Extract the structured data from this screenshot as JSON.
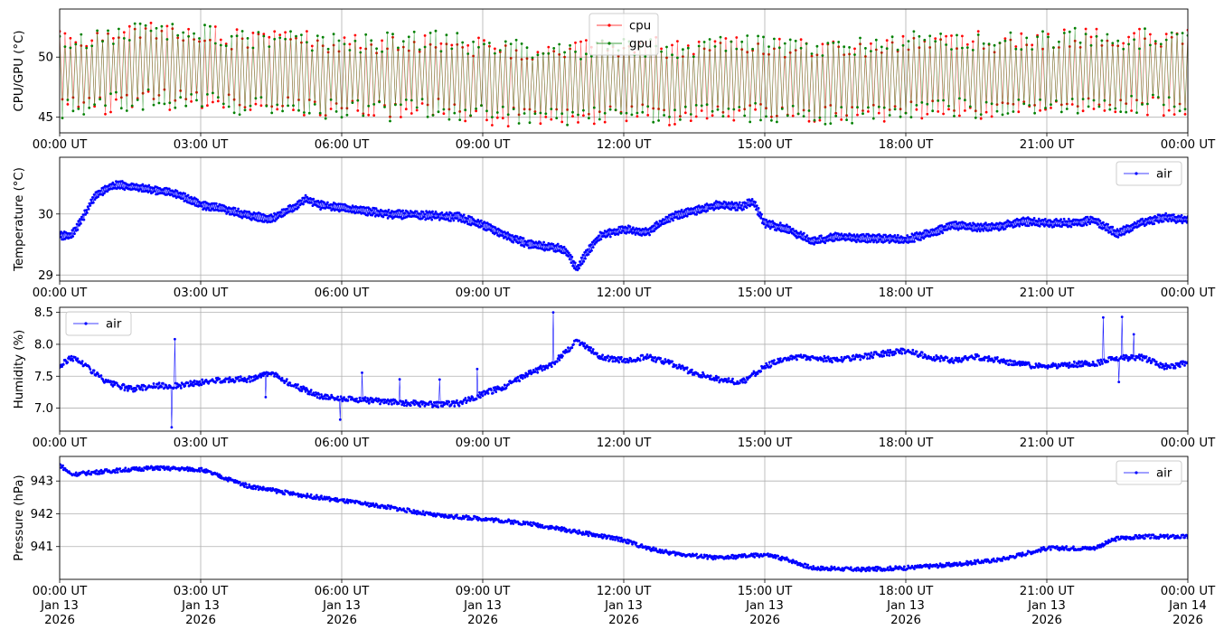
{
  "chart_data": [
    {
      "type": "line",
      "ylabel": "CPU/GPU (°C)",
      "xlim": [
        "2026-01-13T00:00Z",
        "2026-01-14T00:00Z"
      ],
      "ylim": [
        43.7,
        54.0
      ],
      "yticks": [
        45,
        50
      ],
      "grid": true,
      "legend": "upper center",
      "x_tick_labels": [
        "00:00 UT",
        "03:00 UT",
        "06:00 UT",
        "09:00 UT",
        "12:00 UT",
        "15:00 UT",
        "18:00 UT",
        "21:00 UT",
        "00:00 UT"
      ],
      "series": [
        {
          "name": "cpu",
          "color": "#ff0000",
          "x": [
            "00:00",
            "01:00",
            "02:00",
            "03:00",
            "04:00",
            "05:00",
            "06:00",
            "07:00",
            "08:00",
            "09:00",
            "10:00",
            "11:00",
            "12:00",
            "13:00",
            "14:00",
            "15:00",
            "16:00",
            "17:00",
            "18:00",
            "19:00",
            "20:00",
            "21:00",
            "22:00",
            "23:00",
            "24:00"
          ],
          "values": [
            48.6,
            48.9,
            49.4,
            49.1,
            48.6,
            48.7,
            48.4,
            48.4,
            48.6,
            48.0,
            47.8,
            47.7,
            48.1,
            47.9,
            48.3,
            48.2,
            48.0,
            48.0,
            48.5,
            48.6,
            48.4,
            48.6,
            48.8,
            48.7,
            48.8
          ],
          "band": 3.6
        },
        {
          "name": "gpu",
          "color": "#008000",
          "x": [
            "00:00",
            "01:00",
            "02:00",
            "03:00",
            "04:00",
            "05:00",
            "06:00",
            "07:00",
            "08:00",
            "09:00",
            "10:00",
            "11:00",
            "12:00",
            "13:00",
            "14:00",
            "15:00",
            "16:00",
            "17:00",
            "18:00",
            "19:00",
            "20:00",
            "21:00",
            "22:00",
            "23:00",
            "24:00"
          ],
          "values": [
            48.6,
            48.9,
            49.4,
            49.1,
            48.6,
            48.7,
            48.4,
            48.4,
            48.6,
            48.0,
            47.8,
            47.7,
            48.1,
            47.9,
            48.3,
            48.2,
            48.0,
            48.0,
            48.5,
            48.6,
            48.4,
            48.6,
            48.8,
            48.7,
            48.8
          ],
          "band": 3.6
        }
      ]
    },
    {
      "type": "line",
      "ylabel": "Temperature (°C)",
      "xlim": [
        "2026-01-13T00:00Z",
        "2026-01-14T00:00Z"
      ],
      "ylim": [
        28.9,
        30.93
      ],
      "yticks": [
        29,
        30
      ],
      "grid": true,
      "legend": "upper right",
      "x_tick_labels": [
        "00:00 UT",
        "03:00 UT",
        "06:00 UT",
        "09:00 UT",
        "12:00 UT",
        "15:00 UT",
        "18:00 UT",
        "21:00 UT",
        "00:00 UT"
      ],
      "series": [
        {
          "name": "air",
          "color": "#0000ff",
          "x": [
            "00:00",
            "00:15",
            "00:30",
            "00:45",
            "01:00",
            "01:15",
            "01:30",
            "02:00",
            "02:30",
            "03:00",
            "03:30",
            "04:00",
            "04:30",
            "05:00",
            "05:15",
            "05:30",
            "06:00",
            "07:00",
            "08:00",
            "08:30",
            "09:00",
            "09:30",
            "10:00",
            "10:30",
            "10:45",
            "11:00",
            "11:15",
            "11:30",
            "12:00",
            "12:15",
            "12:30",
            "13:00",
            "13:30",
            "14:00",
            "14:30",
            "14:45",
            "15:00",
            "15:30",
            "16:00",
            "16:30",
            "17:00",
            "17:30",
            "18:00",
            "18:30",
            "19:00",
            "19:30",
            "20:00",
            "20:30",
            "21:00",
            "21:30",
            "22:00",
            "22:30",
            "23:00",
            "23:30",
            "24:00"
          ],
          "values": [
            29.65,
            29.65,
            29.95,
            30.3,
            30.42,
            30.48,
            30.45,
            30.4,
            30.33,
            30.15,
            30.08,
            29.98,
            29.92,
            30.12,
            30.25,
            30.15,
            30.1,
            30.0,
            29.97,
            29.95,
            29.82,
            29.65,
            29.5,
            29.45,
            29.42,
            29.1,
            29.4,
            29.65,
            29.75,
            29.72,
            29.7,
            29.95,
            30.05,
            30.15,
            30.12,
            30.2,
            29.85,
            29.75,
            29.55,
            29.62,
            29.6,
            29.6,
            29.58,
            29.68,
            29.82,
            29.78,
            29.8,
            29.88,
            29.85,
            29.85,
            29.9,
            29.68,
            29.85,
            29.95,
            29.9
          ]
        }
      ]
    },
    {
      "type": "line",
      "ylabel": "Humidity (%)",
      "xlim": [
        "2026-01-13T00:00Z",
        "2026-01-14T00:00Z"
      ],
      "ylim": [
        6.64,
        8.58
      ],
      "yticks": [
        7.0,
        7.5,
        8.0,
        8.5
      ],
      "grid": true,
      "legend": "upper left",
      "x_tick_labels": [
        "00:00 UT",
        "03:00 UT",
        "06:00 UT",
        "09:00 UT",
        "12:00 UT",
        "15:00 UT",
        "18:00 UT",
        "21:00 UT",
        "00:00 UT"
      ],
      "series": [
        {
          "name": "air",
          "color": "#0000ff",
          "x": [
            "00:00",
            "00:15",
            "00:30",
            "01:00",
            "01:30",
            "02:00",
            "02:30",
            "03:00",
            "03:30",
            "04:00",
            "04:30",
            "05:00",
            "05:30",
            "06:00",
            "07:00",
            "08:00",
            "08:30",
            "09:00",
            "09:30",
            "10:00",
            "10:30",
            "11:00",
            "11:15",
            "11:30",
            "12:00",
            "12:30",
            "13:00",
            "13:30",
            "14:00",
            "14:30",
            "15:00",
            "15:30",
            "16:00",
            "16:30",
            "17:00",
            "17:30",
            "18:00",
            "18:30",
            "19:00",
            "19:30",
            "20:00",
            "20:30",
            "21:00",
            "21:30",
            "22:00",
            "22:30",
            "23:00",
            "23:30",
            "24:00"
          ],
          "values": [
            7.65,
            7.8,
            7.7,
            7.4,
            7.3,
            7.35,
            7.35,
            7.4,
            7.45,
            7.45,
            7.55,
            7.35,
            7.2,
            7.15,
            7.1,
            7.05,
            7.08,
            7.22,
            7.35,
            7.55,
            7.7,
            8.05,
            7.95,
            7.8,
            7.75,
            7.8,
            7.7,
            7.55,
            7.45,
            7.4,
            7.65,
            7.8,
            7.8,
            7.75,
            7.8,
            7.85,
            7.9,
            7.8,
            7.75,
            7.8,
            7.75,
            7.68,
            7.65,
            7.68,
            7.7,
            7.78,
            7.8,
            7.65,
            7.7
          ]
        }
      ]
    },
    {
      "type": "line",
      "ylabel": "Pressure (hPa)",
      "xlim": [
        "2026-01-13T00:00Z",
        "2026-01-14T00:00Z"
      ],
      "ylim": [
        940.0,
        943.75
      ],
      "yticks": [
        941,
        942,
        943
      ],
      "grid": true,
      "legend": "upper right",
      "x_tick_labels": [
        "00:00 UT\nJan 13\n2026",
        "03:00 UT\nJan 13\n2026",
        "06:00 UT\nJan 13\n2026",
        "09:00 UT\nJan 13\n2026",
        "12:00 UT\nJan 13\n2026",
        "15:00 UT\nJan 13\n2026",
        "18:00 UT\nJan 13\n2026",
        "21:00 UT\nJan 13\n2026",
        "00:00 UT\nJan 14\n2026"
      ],
      "series": [
        {
          "name": "air",
          "color": "#0000ff",
          "x": [
            "00:00",
            "00:15",
            "01:00",
            "02:00",
            "03:00",
            "03:30",
            "04:00",
            "05:00",
            "06:00",
            "07:00",
            "08:00",
            "09:00",
            "10:00",
            "11:00",
            "12:00",
            "12:30",
            "13:00",
            "14:00",
            "15:00",
            "15:30",
            "16:00",
            "17:00",
            "18:00",
            "19:00",
            "20:00",
            "21:00",
            "22:00",
            "22:30",
            "23:00",
            "24:00"
          ],
          "values": [
            943.5,
            943.2,
            943.3,
            943.4,
            943.35,
            943.1,
            942.85,
            942.6,
            942.4,
            942.2,
            941.95,
            941.85,
            941.7,
            941.45,
            941.2,
            940.95,
            940.8,
            940.65,
            940.75,
            940.6,
            940.35,
            940.3,
            940.35,
            940.45,
            940.6,
            940.95,
            940.95,
            941.25,
            941.3,
            941.3
          ]
        }
      ]
    }
  ],
  "shared_x_sublabels": {
    "dates": [
      "Jan 13",
      "Jan 13",
      "Jan 13",
      "Jan 13",
      "Jan 13",
      "Jan 13",
      "Jan 13",
      "Jan 13",
      "Jan 14"
    ],
    "years": [
      "2026",
      "2026",
      "2026",
      "2026",
      "2026",
      "2026",
      "2026",
      "2026",
      "2026"
    ]
  }
}
